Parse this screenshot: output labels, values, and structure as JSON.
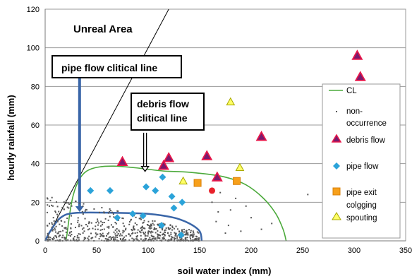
{
  "chart_data": {
    "type": "scatter",
    "xlabel": "soil water index (mm)",
    "ylabel": "hourly rainfall (mm)",
    "xlim": [
      0,
      350
    ],
    "ylim": [
      0,
      120
    ],
    "x_ticks": [
      0,
      50,
      100,
      150,
      200,
      250,
      300,
      350
    ],
    "y_ticks": [
      0,
      20,
      40,
      60,
      80,
      100,
      120
    ],
    "grid": "horizontal",
    "legend_placement": "right",
    "annotations": {
      "unreal_area": "Unreal Area",
      "pipe_flow_line": "pipe flow clitical line",
      "debris_flow_line_1": "debris flow",
      "debris_flow_line_2": "clitical  line"
    },
    "legend": {
      "cl": "CL",
      "non_occurrence_1": "non-",
      "non_occurrence_2": "occurrence",
      "debris_flow": "debris flow",
      "pipe_flow": "pipe flow",
      "pipe_exit_1": "pipe exit",
      "pipe_exit_2": "colgging",
      "spouting": "spouting"
    },
    "colors": {
      "debris_flow_fill": "#7a1a6e",
      "debris_flow_edge": "#e8174a",
      "pipe_flow": "#2ba3d9",
      "pipe_exit": "#f7a01b",
      "spouting": "#ffff66",
      "cl_line": "#4caa3c",
      "pipe_line": "#3a66a8",
      "non_occurrence": "#555555",
      "red_circle": "#e8202a"
    },
    "lines": {
      "unreal_boundary": [
        [
          0,
          0
        ],
        [
          120,
          120
        ]
      ],
      "debris_cl": [
        [
          20,
          0
        ],
        [
          40,
          36
        ],
        [
          120,
          36
        ],
        [
          150,
          35
        ],
        [
          175,
          33
        ],
        [
          195,
          29
        ],
        [
          212,
          22
        ],
        [
          224,
          14
        ],
        [
          231,
          6
        ],
        [
          234,
          0
        ]
      ],
      "pipe_cl": [
        [
          0,
          0
        ],
        [
          5,
          5
        ],
        [
          15,
          12
        ],
        [
          30,
          14.5
        ],
        [
          70,
          14.5
        ],
        [
          100,
          14
        ],
        [
          125,
          12
        ],
        [
          140,
          9
        ],
        [
          150,
          5
        ],
        [
          152,
          0
        ]
      ],
      "debris_arrow": [
        [
          97,
          56
        ],
        [
          97,
          36
        ]
      ],
      "pipe_arrow": [
        [
          30,
          85
        ],
        [
          30,
          15
        ]
      ]
    },
    "series": [
      {
        "name": "debris flow",
        "marker": "triangle",
        "points": [
          [
            303,
            96
          ],
          [
            306,
            85
          ],
          [
            75,
            41
          ],
          [
            120,
            43
          ],
          [
            115,
            39
          ],
          [
            157,
            44
          ],
          [
            167,
            33
          ],
          [
            210,
            54
          ]
        ]
      },
      {
        "name": "pipe flow",
        "marker": "diamond",
        "points": [
          [
            44,
            26
          ],
          [
            63,
            26
          ],
          [
            98,
            28
          ],
          [
            107,
            26
          ],
          [
            114,
            33
          ],
          [
            123,
            23
          ],
          [
            70,
            12
          ],
          [
            85,
            14
          ],
          [
            125,
            17
          ],
          [
            133,
            20
          ],
          [
            95,
            13
          ],
          [
            113,
            8
          ],
          [
            132,
            3
          ]
        ]
      },
      {
        "name": "pipe exit colgging",
        "marker": "square",
        "points": [
          [
            148,
            30
          ],
          [
            186,
            31
          ]
        ]
      },
      {
        "name": "spouting",
        "marker": "triangle",
        "points": [
          [
            180,
            72
          ],
          [
            189,
            38
          ],
          [
            134,
            31
          ]
        ]
      },
      {
        "name": "red circle",
        "marker": "circle",
        "points": [
          [
            162,
            26
          ]
        ]
      },
      {
        "name": "non-occurrence",
        "marker": "dot",
        "count": 620,
        "x_range": [
          2,
          150
        ],
        "y_range": [
          0,
          26
        ],
        "extra_points": [
          [
            166,
            10
          ],
          [
            168,
            15
          ],
          [
            178,
            8
          ],
          [
            180,
            16
          ],
          [
            185,
            22
          ],
          [
            190,
            5
          ],
          [
            200,
            12
          ],
          [
            210,
            6
          ],
          [
            220,
            9
          ],
          [
            255,
            24
          ],
          [
            162,
            20
          ],
          [
            170,
            25
          ],
          [
            175,
            4
          ],
          [
            195,
            18
          ]
        ]
      }
    ]
  }
}
